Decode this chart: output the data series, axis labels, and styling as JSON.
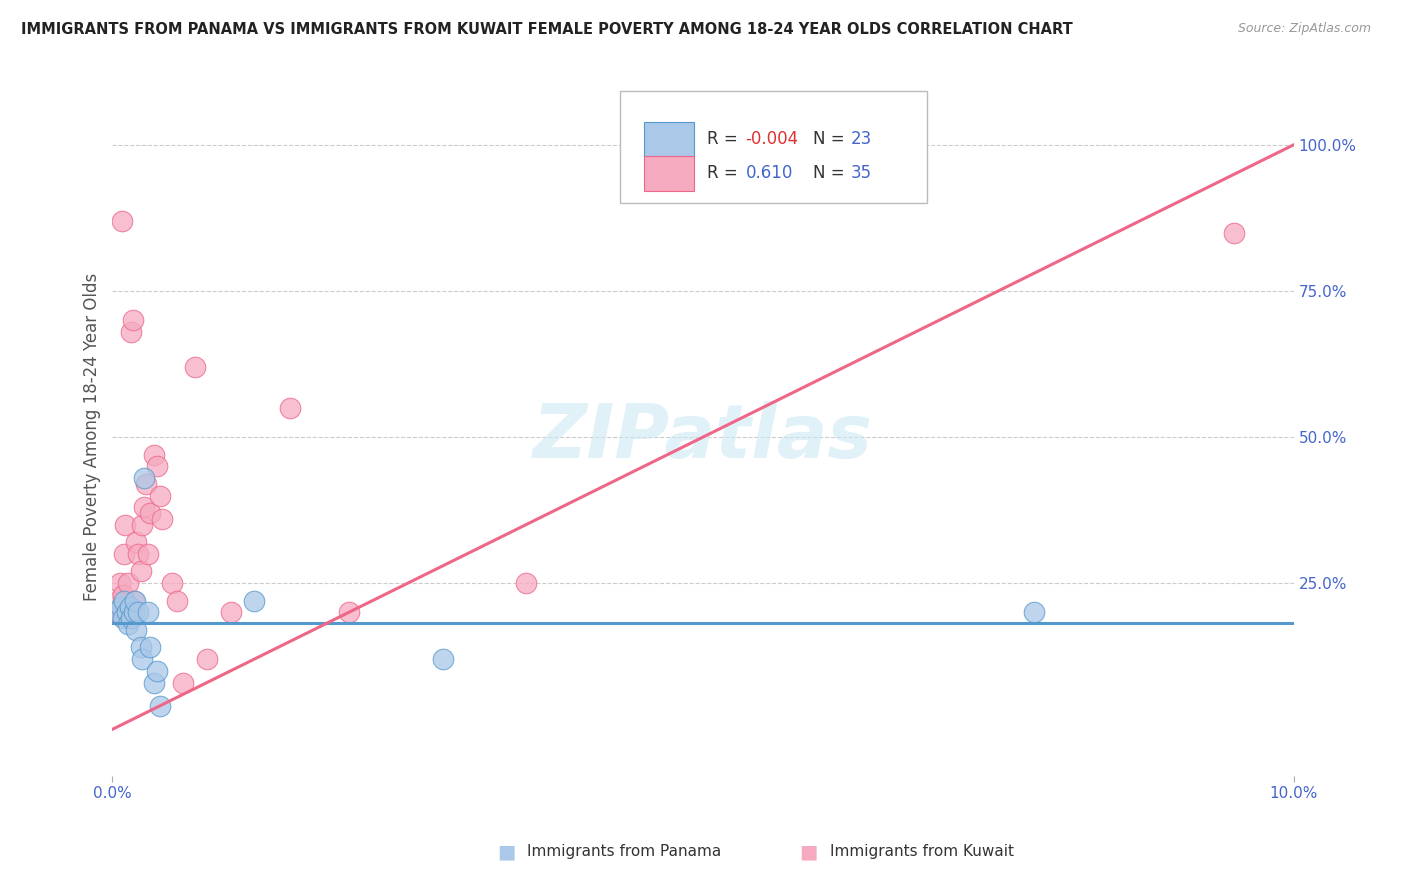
{
  "title": "IMMIGRANTS FROM PANAMA VS IMMIGRANTS FROM KUWAIT FEMALE POVERTY AMONG 18-24 YEAR OLDS CORRELATION CHART",
  "source": "Source: ZipAtlas.com",
  "ylabel": "Female Poverty Among 18-24 Year Olds",
  "xlim": [
    0.0,
    10.0
  ],
  "ylim": [
    -0.08,
    1.08
  ],
  "right_yticks": [
    0.25,
    0.5,
    0.75,
    1.0
  ],
  "right_yticklabels": [
    "25.0%",
    "50.0%",
    "75.0%",
    "100.0%"
  ],
  "color_panama": "#aac8e8",
  "color_kuwait": "#f5aac0",
  "color_panama_line": "#5599cc",
  "color_kuwait_line": "#ee6688",
  "color_title": "#222222",
  "color_source": "#999999",
  "color_r_neg": "#dd3333",
  "color_r_pos": "#4466cc",
  "color_n": "#4466cc",
  "panama_x": [
    0.05,
    0.07,
    0.09,
    0.1,
    0.12,
    0.13,
    0.15,
    0.16,
    0.18,
    0.19,
    0.2,
    0.22,
    0.24,
    0.25,
    0.27,
    0.3,
    0.32,
    0.35,
    0.38,
    0.4,
    1.2,
    2.8,
    7.8
  ],
  "panama_y": [
    0.2,
    0.21,
    0.19,
    0.22,
    0.2,
    0.18,
    0.21,
    0.19,
    0.2,
    0.22,
    0.17,
    0.2,
    0.14,
    0.12,
    0.43,
    0.2,
    0.14,
    0.08,
    0.1,
    0.04,
    0.22,
    0.12,
    0.2
  ],
  "kuwait_x": [
    0.04,
    0.05,
    0.06,
    0.07,
    0.08,
    0.09,
    0.1,
    0.11,
    0.13,
    0.14,
    0.16,
    0.17,
    0.18,
    0.2,
    0.22,
    0.24,
    0.25,
    0.27,
    0.28,
    0.3,
    0.32,
    0.35,
    0.38,
    0.4,
    0.42,
    0.5,
    0.55,
    0.6,
    0.7,
    0.8,
    1.0,
    1.5,
    2.0,
    3.5,
    9.5
  ],
  "kuwait_y": [
    0.2,
    0.22,
    0.25,
    0.2,
    0.87,
    0.23,
    0.3,
    0.35,
    0.25,
    0.2,
    0.68,
    0.7,
    0.22,
    0.32,
    0.3,
    0.27,
    0.35,
    0.38,
    0.42,
    0.3,
    0.37,
    0.47,
    0.45,
    0.4,
    0.36,
    0.25,
    0.22,
    0.08,
    0.62,
    0.12,
    0.2,
    0.55,
    0.2,
    0.25,
    0.85
  ],
  "background_color": "#ffffff",
  "grid_color": "#cccccc",
  "watermark": "ZIPatlas"
}
